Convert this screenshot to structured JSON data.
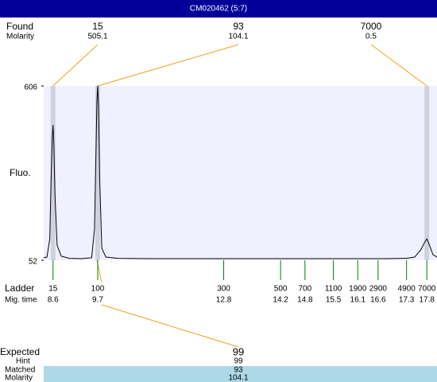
{
  "title": "CM020462 (5:7)",
  "found": {
    "label": "Found",
    "molarity_label": "Molarity",
    "peaks": [
      {
        "size": 15,
        "molarity": 505.1
      },
      {
        "size": 93,
        "molarity": 104.1
      },
      {
        "size": 7000,
        "molarity": 0.5
      }
    ]
  },
  "chart_data": {
    "type": "line",
    "ylabel": "Fluo.",
    "color": "#000000",
    "x": [
      8.37,
      8.45,
      8.52,
      8.55,
      8.58,
      8.6,
      8.62,
      8.65,
      8.7,
      8.8,
      9.0,
      9.3,
      9.55,
      9.62,
      9.66,
      9.68,
      9.7,
      9.72,
      9.75,
      9.8,
      9.9,
      10.2,
      11,
      12,
      12.8,
      13.5,
      14.2,
      15,
      16,
      16.8,
      17.3,
      17.5,
      17.65,
      17.75,
      17.8,
      17.85,
      17.95,
      18.05
    ],
    "values": [
      60,
      62,
      120,
      300,
      440,
      482,
      420,
      250,
      100,
      65,
      58,
      57,
      60,
      150,
      420,
      560,
      606,
      540,
      300,
      90,
      62,
      58,
      57,
      57,
      57,
      57,
      57,
      57,
      57,
      57,
      58,
      62,
      85,
      110,
      120,
      105,
      70,
      62
    ],
    "xlim": [
      8.37,
      18.05
    ],
    "ylim": [
      52,
      606
    ],
    "yticks": [
      52,
      606
    ]
  },
  "ladder": {
    "label": "Ladder",
    "time_label": "Mig. time",
    "sizes": [
      15,
      100,
      300,
      500,
      700,
      1100,
      1900,
      2900,
      4900,
      7000
    ],
    "times": [
      8.6,
      9.7,
      12.8,
      14.2,
      14.8,
      15.5,
      16.1,
      16.6,
      17.3,
      17.8
    ]
  },
  "expected": {
    "label": "Expected",
    "value": 99,
    "hint_label": "Hint",
    "hint": 99,
    "matched_label": "Matched",
    "matched": 93,
    "molarity_label": "Molarity",
    "molarity": 104.1
  }
}
